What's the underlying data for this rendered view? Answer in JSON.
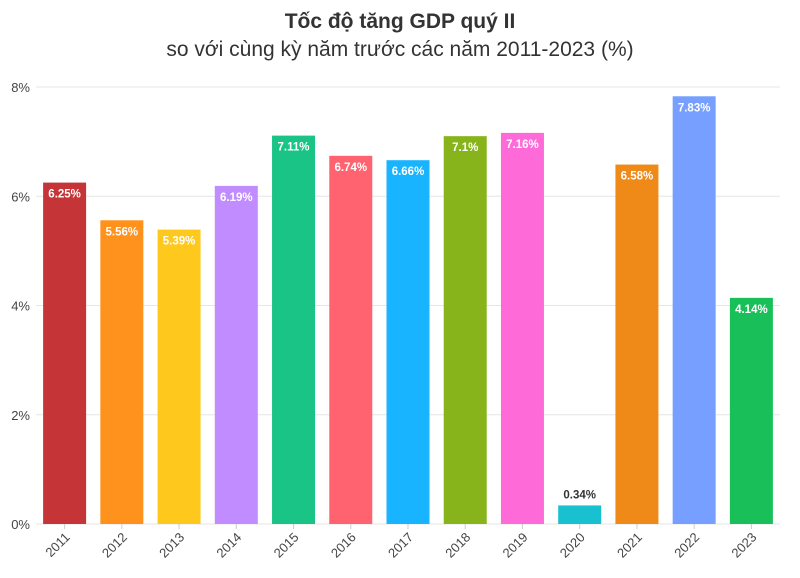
{
  "chart_data": {
    "type": "bar",
    "title": "Tốc độ tăng GDP quý II",
    "subtitle": "so với cùng kỳ năm trước các năm 2011-2023 (%)",
    "xlabel": "",
    "ylabel": "",
    "categories": [
      "2011",
      "2012",
      "2013",
      "2014",
      "2015",
      "2016",
      "2017",
      "2018",
      "2019",
      "2020",
      "2021",
      "2022",
      "2023"
    ],
    "values": [
      6.25,
      5.56,
      5.39,
      6.19,
      7.11,
      6.74,
      6.66,
      7.1,
      7.16,
      0.34,
      6.58,
      7.83,
      4.14
    ],
    "data_labels": [
      "6.25%",
      "5.56%",
      "5.39%",
      "6.19%",
      "7.11%",
      "6.74%",
      "6.66%",
      "7.1%",
      "7.16%",
      "0.34%",
      "6.58%",
      "7.83%",
      "4.14%"
    ],
    "colors": [
      "#c53437",
      "#ff921d",
      "#ffc81c",
      "#c08cff",
      "#19c486",
      "#ff636f",
      "#19b4ff",
      "#86b41a",
      "#ff6ad9",
      "#19c1d0",
      "#ef8a18",
      "#779fff",
      "#19bf58"
    ],
    "ylim": [
      0,
      8
    ],
    "yticks": [
      0,
      2,
      4,
      6,
      8
    ],
    "ytick_labels": [
      "0%",
      "2%",
      "4%",
      "6%",
      "8%"
    ],
    "grid": true,
    "legend": "none"
  }
}
